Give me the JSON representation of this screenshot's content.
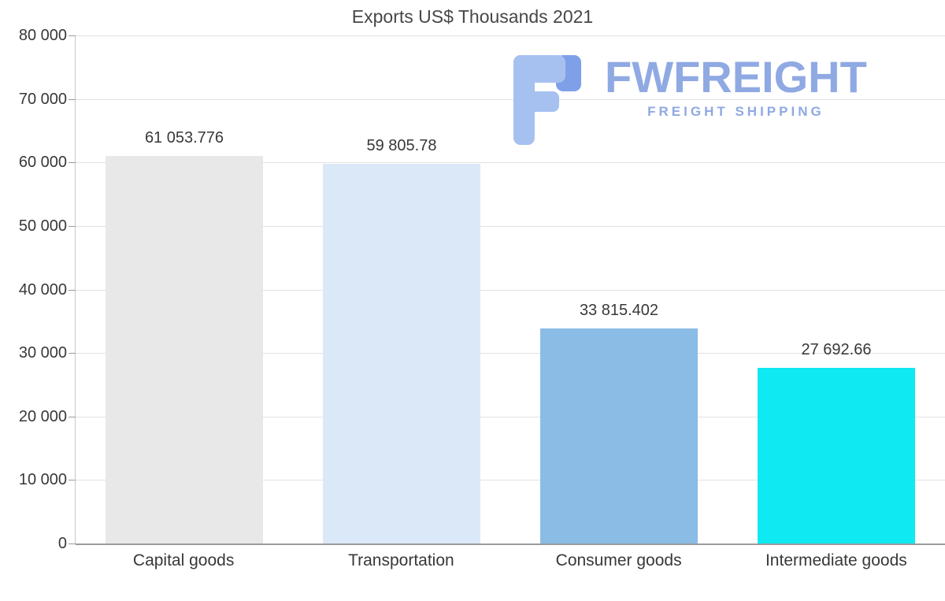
{
  "chart_data": {
    "type": "bar",
    "title": "Exports US$ Thousands 2021",
    "categories": [
      "Capital goods",
      "Transportation",
      "Consumer goods",
      "Intermediate goods"
    ],
    "values": [
      61053.776,
      59805.78,
      33815.402,
      27692.66
    ],
    "value_labels": [
      "61 053.776",
      "59 805.78",
      "33 815.402",
      "27 692.66"
    ],
    "bar_colors": [
      "#e8e8e8",
      "#dbe8f8",
      "#8abce5",
      "#0fe9f2"
    ],
    "xlabel": "",
    "ylabel": "",
    "ylim": [
      0,
      80000
    ],
    "ytick_interval": 10000,
    "ytick_labels": [
      "80 000",
      "70 000",
      "60 000",
      "50 000",
      "40 000",
      "30 000",
      "20 000",
      "10 000",
      "0"
    ],
    "grid": true,
    "legend_position": "none"
  },
  "watermark": {
    "brand": "FWFREIGHT",
    "tagline": "FREIGHT SHIPPING",
    "color_light": "#a6c1f0",
    "color_dark": "#7fa0e8"
  }
}
